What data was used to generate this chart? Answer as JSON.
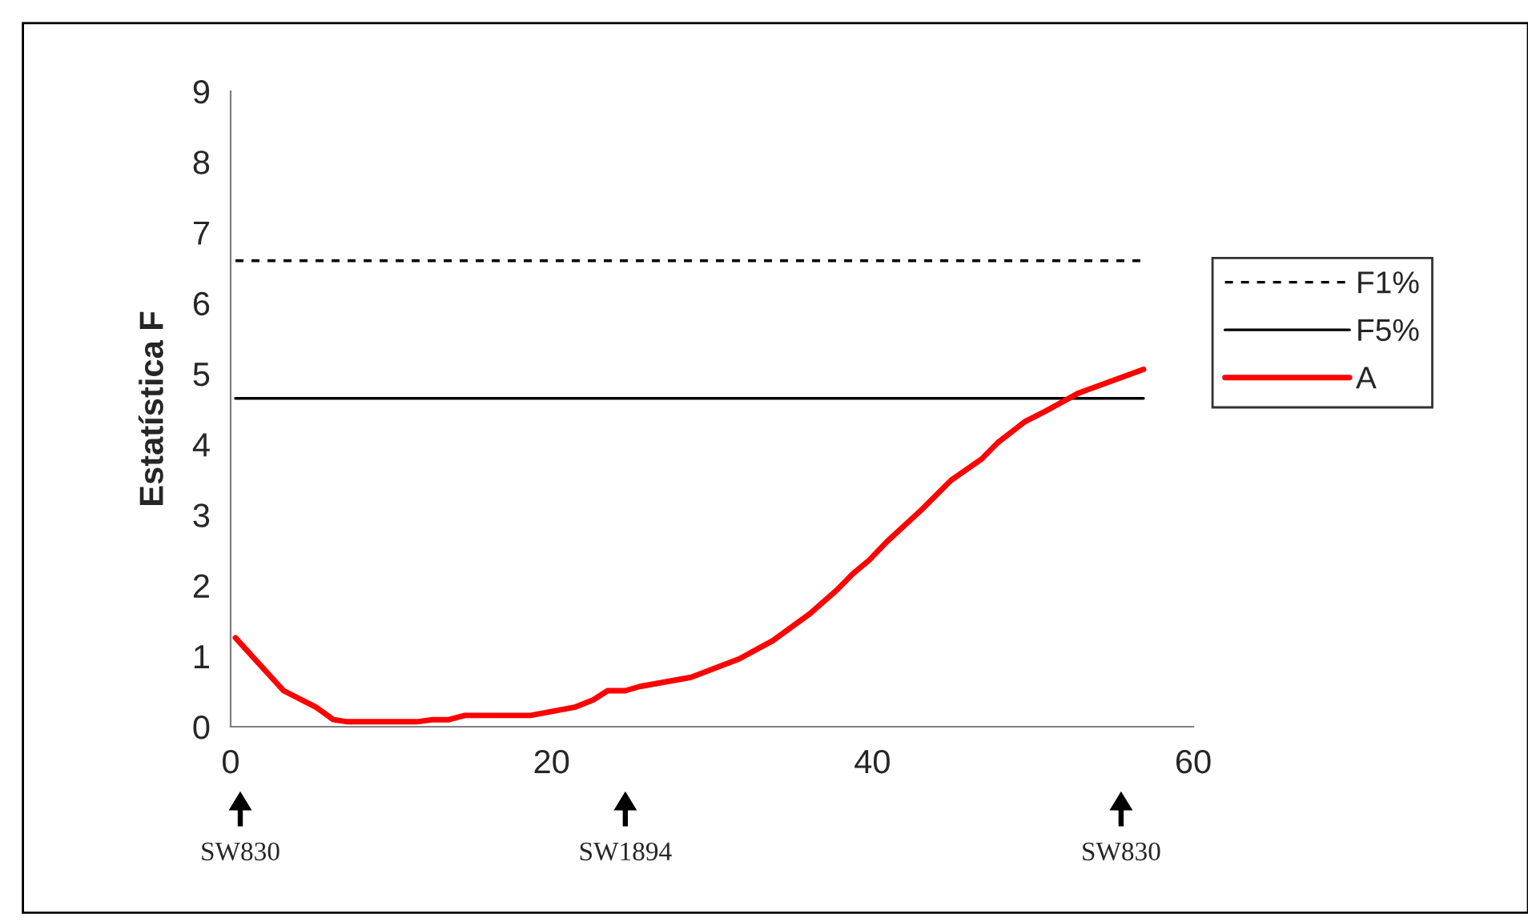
{
  "chart_data": {
    "type": "line",
    "ylabel": "Estatística F",
    "xlim": [
      0,
      60
    ],
    "xticks": [
      0,
      20,
      40,
      60
    ],
    "ylim": [
      0,
      9
    ],
    "yticks": [
      0,
      1,
      2,
      3,
      4,
      5,
      6,
      7,
      8,
      9
    ],
    "grid": false,
    "legend": "right",
    "marker": "none",
    "series": [
      {
        "name": "F1%",
        "color": "#000000",
        "line_style": "dashed",
        "x": [
          0.3,
          56.9
        ],
        "values": [
          6.6,
          6.6
        ]
      },
      {
        "name": "F5%",
        "color": "#000000",
        "line_style": "solid",
        "x": [
          0.3,
          56.9
        ],
        "values": [
          4.65,
          4.65
        ]
      },
      {
        "name": "A",
        "color": "#ff0000",
        "line_style": "solid",
        "x": [
          0.3,
          1.5,
          3.3,
          5.3,
          6.4,
          7.3,
          11.6,
          12.6,
          13.6,
          14.6,
          18.7,
          21.5,
          22.6,
          23.5,
          24.6,
          25.5,
          28.7,
          31.7,
          33.8,
          36.1,
          37.8,
          38.8,
          39.8,
          40.9,
          43.1,
          44.9,
          46.8,
          47.8,
          49.5,
          50.8,
          52.8,
          56.9
        ],
        "values": [
          1.26,
          0.96,
          0.51,
          0.28,
          0.1,
          0.07,
          0.07,
          0.1,
          0.1,
          0.16,
          0.16,
          0.28,
          0.38,
          0.51,
          0.51,
          0.57,
          0.7,
          0.96,
          1.22,
          1.6,
          1.94,
          2.17,
          2.36,
          2.62,
          3.08,
          3.49,
          3.79,
          4.02,
          4.32,
          4.47,
          4.72,
          5.06
        ]
      }
    ],
    "annotations": [
      "SW830",
      "SW1894",
      "SW830"
    ]
  }
}
